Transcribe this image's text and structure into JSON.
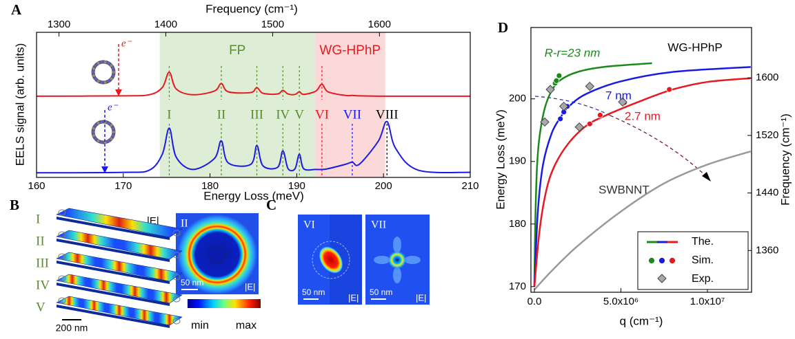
{
  "chart_data": [
    {
      "type": "line",
      "panel_label": "A",
      "x_label": "Energy Loss (meV)",
      "y_label": "EELS signal (arb. units)",
      "x2_label": "Frequency (cm⁻¹)",
      "x": [
        160,
        170,
        173,
        174.5,
        175.3,
        176.1,
        178,
        180.5,
        181.3,
        182.1,
        184.7,
        185.4,
        186.1,
        187.8,
        188.4,
        189,
        189.8,
        190.3,
        190.8,
        192.2,
        192.9,
        193.6,
        195.6,
        196.4,
        197.2,
        199.4,
        200.4,
        201.4,
        204,
        210
      ],
      "series": [
        {
          "color": "#e8191e",
          "values": [
            5.6,
            5.62,
            5.7,
            6.2,
            7.25,
            6.1,
            5.7,
            5.95,
            6.47,
            5.9,
            5.85,
            6.19,
            5.8,
            5.75,
            6.0,
            5.75,
            5.72,
            5.9,
            5.72,
            5.95,
            6.42,
            5.9,
            5.65,
            5.65,
            5.62,
            5.6,
            5.6,
            5.6,
            5.6,
            5.6
          ]
        },
        {
          "color": "#1a1ae6",
          "values": [
            0.32,
            0.35,
            0.5,
            1.6,
            3.4,
            1.4,
            0.55,
            1.3,
            2.52,
            1.0,
            0.9,
            2.2,
            0.8,
            0.7,
            1.83,
            0.6,
            0.6,
            1.6,
            0.6,
            0.55,
            0.55,
            0.6,
            0.9,
            1.05,
            0.9,
            2.5,
            3.85,
            2.0,
            0.5,
            0.35
          ]
        }
      ],
      "xlim": [
        160,
        210
      ],
      "xticks": [
        160,
        170,
        180,
        190,
        200,
        210
      ],
      "x2lim": [
        1279,
        1685
      ],
      "x2ticks": [
        1300,
        1400,
        1500,
        1600
      ],
      "ylim": [
        0,
        10
      ],
      "regions": [
        {
          "label": "FP",
          "xlim": [
            174.2,
            192.1
          ],
          "color": "#deedd6",
          "label_color": "#5a8a32"
        },
        {
          "label": "WG-HPhP",
          "xlim": [
            192.1,
            200.2
          ],
          "color": "#fbd9d9",
          "label_color": "#e8191e"
        }
      ],
      "peaks": [
        {
          "label": "I",
          "x": 175.3,
          "color": "#5a8a32"
        },
        {
          "label": "II",
          "x": 181.3,
          "color": "#5a8a32"
        },
        {
          "label": "III",
          "x": 185.4,
          "color": "#5a8a32"
        },
        {
          "label": "IV",
          "x": 188.4,
          "color": "#5a8a32"
        },
        {
          "label": "V",
          "x": 190.3,
          "color": "#5a8a32"
        },
        {
          "label": "VI",
          "x": 192.9,
          "color": "#e8191e"
        },
        {
          "label": "VII",
          "x": 196.4,
          "color": "#1a1ae6"
        },
        {
          "label": "VIII",
          "x": 200.4,
          "color": "#000000"
        }
      ],
      "electron_labels": [
        "e⁻",
        "e⁻"
      ]
    },
    {
      "type": "line",
      "panel_label": "D",
      "x_label": "q (cm⁻¹)",
      "y_label": "Energy Loss (meV)",
      "y2_label": "Frequency (cm⁻¹)",
      "xlim": [
        -200000,
        12550000
      ],
      "xticks": [
        {
          "value": 0,
          "label": "0.0"
        },
        {
          "value": 5000000,
          "label": "5.0x10⁶"
        },
        {
          "value": 10000000,
          "label": "1.0x10⁷"
        }
      ],
      "ylim": [
        169.1,
        211.4
      ],
      "yticks": [
        170,
        180,
        190,
        200
      ],
      "y2lim": [
        1302,
        1670
      ],
      "y2ticks": [
        1360,
        1440,
        1520,
        1600
      ],
      "series": [
        {
          "type": "line",
          "color": "#1a8a1a",
          "x": [
            0,
            50000,
            150000,
            300000,
            600000,
            1000000,
            1500000,
            2500000,
            4000000,
            6800000
          ],
          "values": [
            170,
            180,
            189,
            194,
            198.5,
            201.3,
            203,
            204.3,
            205.1,
            205.7
          ]
        },
        {
          "type": "line",
          "color": "#1a1ae6",
          "x": [
            0,
            200000,
            500000,
            1000000,
            1500000,
            2000000,
            3000000,
            5000000,
            8000000,
            12500000
          ],
          "values": [
            170,
            182,
            189.5,
            194.5,
            197,
            198.8,
            200.8,
            202.8,
            204.3,
            205.1
          ]
        },
        {
          "type": "line",
          "color": "#e8191e",
          "x": [
            0,
            300000,
            700000,
            1200000,
            2000000,
            3000000,
            4000000,
            6000000,
            8000000,
            10000000,
            12500000
          ],
          "values": [
            170,
            179,
            185.5,
            189.5,
            193,
            195.7,
            197.2,
            199.5,
            201.5,
            202.7,
            203.3
          ]
        },
        {
          "type": "line",
          "color": "#999999",
          "x": [
            0,
            1000000,
            2500000,
            5000000,
            7500000,
            10000000,
            12500000
          ],
          "values": [
            169.5,
            172.5,
            176.5,
            182,
            186.5,
            189.5,
            191.6
          ]
        },
        {
          "type": "scatter",
          "color": "#1a8a1a",
          "x": [
            1200000,
            1270000,
            1430000
          ],
          "values": [
            202.5,
            202.9,
            203.7
          ]
        },
        {
          "type": "scatter",
          "color": "#1a1ae6",
          "x": [
            1500000,
            1700000,
            1900000
          ],
          "values": [
            196.8,
            197.9,
            198.8
          ]
        },
        {
          "type": "scatter",
          "color": "#e8191e",
          "x": [
            3200000,
            3800000,
            5200000,
            7800000
          ],
          "values": [
            196,
            197.4,
            199.4,
            201.5
          ]
        },
        {
          "type": "diamond",
          "color": "#a8a8a8",
          "x": [
            600000,
            920000,
            1700000,
            3200000,
            2600000,
            5100000
          ],
          "values": [
            196.3,
            201.5,
            198.8,
            202,
            195.5,
            199.5
          ]
        }
      ],
      "annotations": [
        {
          "text": "WG-HPhP",
          "color": "#000000"
        },
        {
          "text": "R-r=23 nm",
          "color": "#1a8a1a"
        },
        {
          "text": "7 nm",
          "color": "#1a1ae6"
        },
        {
          "text": "2.7 nm",
          "color": "#e8191e"
        },
        {
          "text": "SWBNNT",
          "color": "#333333"
        }
      ],
      "legend": [
        "The.",
        "Sim.",
        "Exp."
      ]
    }
  ],
  "panel_b": {
    "label": "B",
    "modes": [
      "I",
      "II",
      "III",
      "IV",
      "V"
    ],
    "field_label": "|E|",
    "scale_bar": "200 nm",
    "map": {
      "mode": "II",
      "scale_bar": "50 nm",
      "field_label": "|E|"
    },
    "colorbar": {
      "min": "min",
      "max": "max"
    }
  },
  "panel_c": {
    "label": "C",
    "maps": [
      {
        "mode": "VI",
        "scale_bar": "50 nm",
        "field_label": "|E|"
      },
      {
        "mode": "VII",
        "scale_bar": "50 nm",
        "field_label": "|E|"
      }
    ]
  }
}
